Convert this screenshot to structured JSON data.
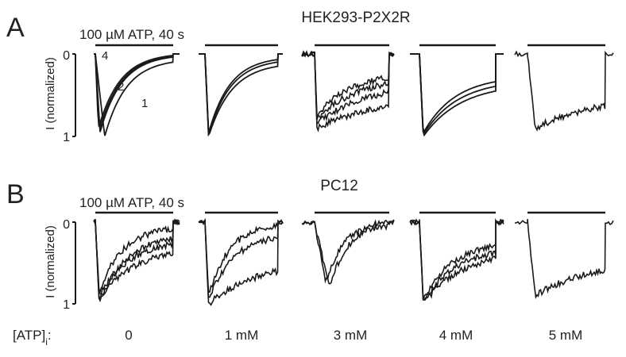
{
  "panels": [
    {
      "letter": "A",
      "title": "HEK293-P2X2R",
      "stimulus_label": "100 µM ATP, 40 s",
      "ylabel": "I (normalized)",
      "y_ticks": [
        "0",
        "1"
      ],
      "trace_labels": [
        "1",
        "2",
        "4"
      ],
      "conditions": [
        {
          "atp_i": "0",
          "traces": [
            {
              "amp": 1.0,
              "min_at": 0.12,
              "recovery": 0.9
            },
            {
              "amp": 0.95,
              "min_at": 0.06,
              "recovery": 0.96
            },
            {
              "amp": 0.93,
              "min_at": 0.05,
              "recovery": 0.97
            },
            {
              "amp": 0.9,
              "min_at": 0.04,
              "recovery": 0.98
            }
          ]
        },
        {
          "atp_i": "1 mM",
          "traces": [
            {
              "amp": 1.0,
              "min_at": 0.05,
              "recovery": 0.85
            },
            {
              "amp": 0.98,
              "min_at": 0.05,
              "recovery": 0.9
            },
            {
              "amp": 0.96,
              "min_at": 0.05,
              "recovery": 0.93
            }
          ]
        },
        {
          "atp_i": "3 mM",
          "traces": [
            {
              "amp": 0.9,
              "min_at": 0.03,
              "recovery": 0.3
            },
            {
              "amp": 0.85,
              "min_at": 0.03,
              "recovery": 0.45
            },
            {
              "amp": 0.8,
              "min_at": 0.03,
              "recovery": 0.55
            },
            {
              "amp": 0.75,
              "min_at": 0.03,
              "recovery": 0.62
            }
          ]
        },
        {
          "atp_i": "4 mM",
          "traces": [
            {
              "amp": 1.0,
              "min_at": 0.05,
              "recovery": 0.55
            },
            {
              "amp": 0.98,
              "min_at": 0.05,
              "recovery": 0.6
            },
            {
              "amp": 0.96,
              "min_at": 0.05,
              "recovery": 0.65
            }
          ]
        },
        {
          "atp_i": "5 mM",
          "traces": [
            {
              "amp": 0.9,
              "min_at": 0.1,
              "recovery": 0.3
            }
          ]
        }
      ]
    },
    {
      "letter": "B",
      "title": "PC12",
      "stimulus_label": "100 µM ATP, 40 s",
      "ylabel": "I (normalized)",
      "y_ticks": [
        "0",
        "1"
      ],
      "conditions": [
        {
          "atp_i": "0",
          "traces": [
            {
              "amp": 1.0,
              "min_at": 0.05,
              "recovery": 0.8
            },
            {
              "amp": 0.95,
              "min_at": 0.05,
              "recovery": 0.6
            },
            {
              "amp": 0.9,
              "min_at": 0.05,
              "recovery": 0.7
            },
            {
              "amp": 0.85,
              "min_at": 0.05,
              "recovery": 0.9
            }
          ]
        },
        {
          "atp_i": "1 mM",
          "traces": [
            {
              "amp": 1.0,
              "min_at": 0.05,
              "recovery": 0.4
            },
            {
              "amp": 0.95,
              "min_at": 0.05,
              "recovery": 0.8
            },
            {
              "amp": 0.9,
              "min_at": 0.05,
              "recovery": 0.95
            }
          ]
        },
        {
          "atp_i": "3 mM",
          "traces": [
            {
              "amp": 0.8,
              "min_at": 0.2,
              "recovery": 0.95
            },
            {
              "amp": 0.75,
              "min_at": 0.15,
              "recovery": 1.0
            }
          ]
        },
        {
          "atp_i": "4 mM",
          "traces": [
            {
              "amp": 1.0,
              "min_at": 0.05,
              "recovery": 0.55
            },
            {
              "amp": 0.98,
              "min_at": 0.05,
              "recovery": 0.62
            },
            {
              "amp": 0.96,
              "min_at": 0.05,
              "recovery": 0.7
            }
          ]
        },
        {
          "atp_i": "5 mM",
          "traces": [
            {
              "amp": 0.9,
              "min_at": 0.1,
              "recovery": 0.35
            }
          ]
        }
      ]
    }
  ],
  "bottom_label": "[ATP]",
  "bottom_label_sub": "i",
  "bottom_label_suffix": ":",
  "condition_labels": [
    "0",
    "1 mM",
    "3 mM",
    "4 mM",
    "5 mM"
  ],
  "colors": {
    "trace": "#1a1a1a",
    "text": "#222222",
    "background": "#ffffff"
  }
}
